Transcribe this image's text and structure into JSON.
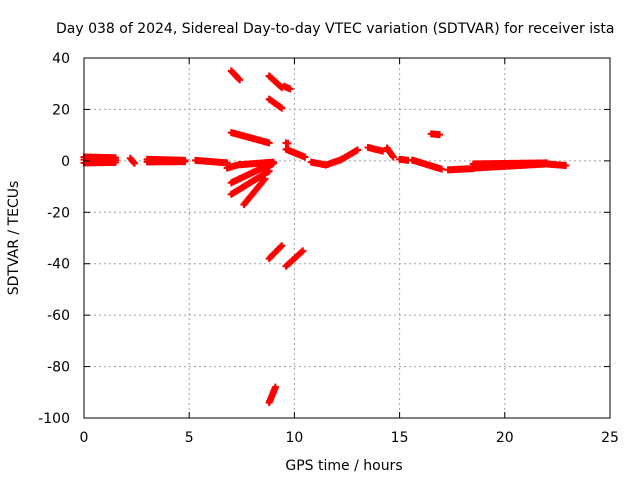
{
  "chart_data": {
    "type": "scatter",
    "title": "Day 038 of 2024, Sidereal Day-to-day VTEC variation (SDTVAR) for receiver ista",
    "xlabel": "GPS time / hours",
    "ylabel": "SDTVAR / TECUs",
    "xlim": [
      0,
      25
    ],
    "ylim": [
      -100,
      40
    ],
    "xticks": [
      0,
      5,
      10,
      15,
      20,
      25
    ],
    "yticks": [
      -100,
      -80,
      -60,
      -40,
      -20,
      0,
      20,
      40
    ],
    "xtick_labels": [
      "0",
      "5",
      "10",
      "15",
      "20",
      "25"
    ],
    "ytick_labels": [
      "-100",
      "-80",
      "-60",
      "-40",
      "-20",
      "0",
      "20",
      "40"
    ],
    "grid": true,
    "marker": "plus",
    "point_color": "#ff0000",
    "series": [
      {
        "name": "SDTVAR",
        "segments": [
          {
            "x": [
              0.0,
              1.5
            ],
            "y": [
              0.5,
              0.3
            ]
          },
          {
            "x": [
              0.0,
              1.5
            ],
            "y": [
              1.5,
              1.2
            ]
          },
          {
            "x": [
              0.0,
              1.5
            ],
            "y": [
              -0.8,
              -0.6
            ]
          },
          {
            "x": [
              2.2,
              2.4
            ],
            "y": [
              1.0,
              -1.0
            ]
          },
          {
            "x": [
              3.0,
              4.8
            ],
            "y": [
              0.6,
              0.2
            ]
          },
          {
            "x": [
              3.0,
              4.8
            ],
            "y": [
              -0.4,
              -0.3
            ]
          },
          {
            "x": [
              5.3,
              6.8
            ],
            "y": [
              0.2,
              -0.8
            ]
          },
          {
            "x": [
              6.8,
              7.4
            ],
            "y": [
              -2.8,
              -1.4
            ]
          },
          {
            "x": [
              7.4,
              9.0
            ],
            "y": [
              -1.5,
              -0.5
            ]
          },
          {
            "x": [
              7.0,
              7.4
            ],
            "y": [
              35.0,
              31.5
            ]
          },
          {
            "x": [
              7.0,
              8.8
            ],
            "y": [
              11.0,
              7.0
            ]
          },
          {
            "x": [
              7.0,
              8.8
            ],
            "y": [
              -8.5,
              -1.5
            ]
          },
          {
            "x": [
              7.0,
              8.8
            ],
            "y": [
              -13.0,
              -4.0
            ]
          },
          {
            "x": [
              7.6,
              8.6
            ],
            "y": [
              -17.0,
              -7.0
            ]
          },
          {
            "x": [
              8.5,
              9.0
            ],
            "y": [
              -3.5,
              -1.0
            ]
          },
          {
            "x": [
              8.8,
              9.4
            ],
            "y": [
              33.0,
              28.5
            ]
          },
          {
            "x": [
              9.5,
              9.8
            ],
            "y": [
              29.0,
              28.0
            ]
          },
          {
            "x": [
              8.8,
              9.4
            ],
            "y": [
              24.0,
              20.5
            ]
          },
          {
            "x": [
              9.6,
              9.7
            ],
            "y": [
              7.0,
              6.8
            ]
          },
          {
            "x": [
              9.6,
              10.5
            ],
            "y": [
              4.5,
              1.5
            ]
          },
          {
            "x": [
              8.8,
              9.4
            ],
            "y": [
              -38.0,
              -33.0
            ]
          },
          {
            "x": [
              9.6,
              10.4
            ],
            "y": [
              -41.0,
              -35.0
            ]
          },
          {
            "x": [
              8.8,
              9.1
            ],
            "y": [
              -94.0,
              -88.0
            ]
          },
          {
            "x": [
              10.8,
              11.5
            ],
            "y": [
              -0.5,
              -1.6
            ]
          },
          {
            "x": [
              11.5,
              12.2
            ],
            "y": [
              -1.6,
              0.4
            ]
          },
          {
            "x": [
              12.2,
              13.0
            ],
            "y": [
              0.4,
              4.2
            ]
          },
          {
            "x": [
              13.5,
              14.2
            ],
            "y": [
              5.2,
              3.8
            ]
          },
          {
            "x": [
              14.4,
              14.7
            ],
            "y": [
              5.0,
              1.5
            ]
          },
          {
            "x": [
              15.0,
              15.4
            ],
            "y": [
              0.6,
              0.2
            ]
          },
          {
            "x": [
              15.6,
              17.0
            ],
            "y": [
              0.3,
              -3.2
            ]
          },
          {
            "x": [
              16.5,
              16.9
            ],
            "y": [
              10.5,
              10.2
            ]
          },
          {
            "x": [
              17.3,
              18.5
            ],
            "y": [
              -3.5,
              -3.0
            ]
          },
          {
            "x": [
              18.5,
              22.0
            ],
            "y": [
              -2.8,
              -1.2
            ]
          },
          {
            "x": [
              18.5,
              22.0
            ],
            "y": [
              -1.2,
              -0.8
            ]
          },
          {
            "x": [
              22.0,
              22.9
            ],
            "y": [
              -1.2,
              -1.8
            ]
          }
        ]
      }
    ]
  }
}
